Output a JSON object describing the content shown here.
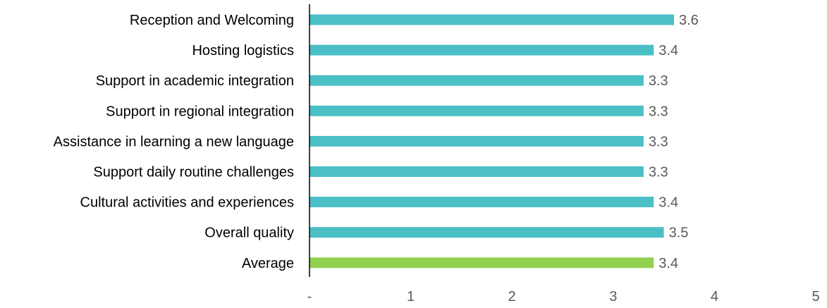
{
  "chart_data": {
    "type": "bar",
    "orientation": "horizontal",
    "categories": [
      "Reception and Welcoming",
      "Hosting logistics",
      "Support in academic integration",
      "Support in regional integration",
      "Assistance in learning a new language",
      "Support daily routine challenges",
      "Cultural activities and experiences",
      "Overall quality",
      "Average"
    ],
    "values": [
      3.6,
      3.4,
      3.3,
      3.3,
      3.3,
      3.3,
      3.4,
      3.5,
      3.4
    ],
    "value_labels": [
      "3.6",
      "3.4",
      "3.3",
      "3.3",
      "3.3",
      "3.3",
      "3.4",
      "3.5",
      "3.4"
    ],
    "bar_colors": [
      "#4BBFC6",
      "#4BBFC6",
      "#4BBFC6",
      "#4BBFC6",
      "#4BBFC6",
      "#4BBFC6",
      "#4BBFC6",
      "#4BBFC6",
      "#92D050"
    ],
    "xlim": [
      0,
      5
    ],
    "x_ticks": [
      0,
      1,
      2,
      3,
      4,
      5
    ],
    "x_tick_labels": [
      "-",
      "1",
      "2",
      "3",
      "4",
      "5"
    ],
    "title": "",
    "xlabel": "",
    "ylabel": "",
    "grid": false,
    "legend": "none"
  }
}
